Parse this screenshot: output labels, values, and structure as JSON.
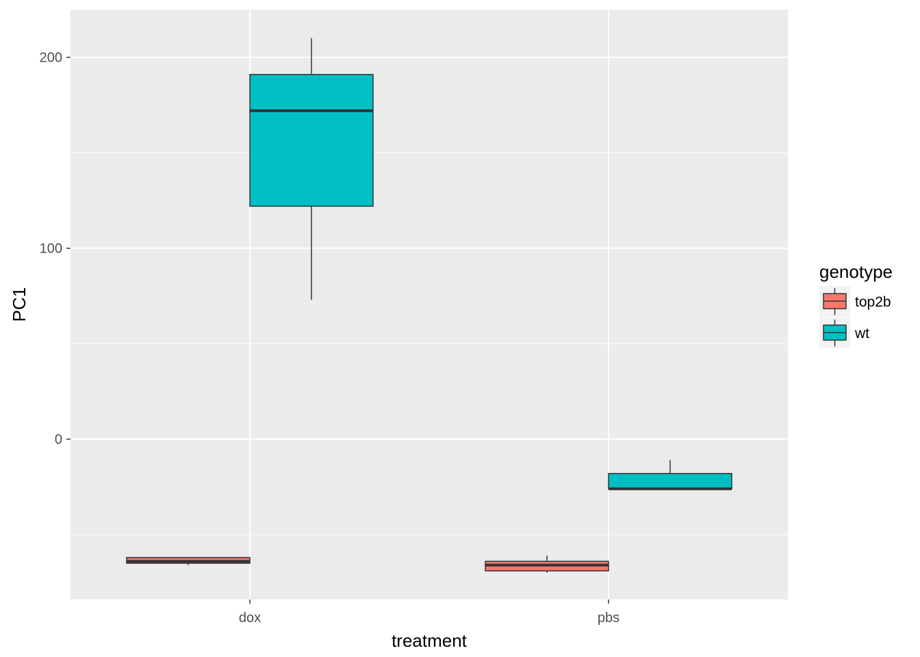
{
  "chart_data": {
    "type": "boxplot",
    "xlabel": "treatment",
    "ylabel": "PC1",
    "categories": [
      "dox",
      "pbs"
    ],
    "ylim": [
      -84,
      225
    ],
    "y_ticks": [
      0,
      100,
      200
    ],
    "grid": true,
    "legend": {
      "title": "genotype",
      "position": "right",
      "entries": [
        {
          "label": "top2b",
          "color": "#F8766D"
        },
        {
          "label": "wt",
          "color": "#00BFC4"
        }
      ]
    },
    "series": [
      {
        "name": "top2b",
        "color": "#F8766D",
        "boxes": [
          {
            "category": "dox",
            "min": -66,
            "q1": -65,
            "median": -64,
            "q3": -62,
            "max": -62
          },
          {
            "category": "pbs",
            "min": -70,
            "q1": -69,
            "median": -66,
            "q3": -64,
            "max": -61
          }
        ]
      },
      {
        "name": "wt",
        "color": "#00BFC4",
        "boxes": [
          {
            "category": "dox",
            "min": 73,
            "q1": 122,
            "median": 172,
            "q3": 191,
            "max": 210
          },
          {
            "category": "pbs",
            "min": -26,
            "q1": -26,
            "median": -26,
            "q3": -18,
            "max": -11
          }
        ]
      }
    ]
  }
}
